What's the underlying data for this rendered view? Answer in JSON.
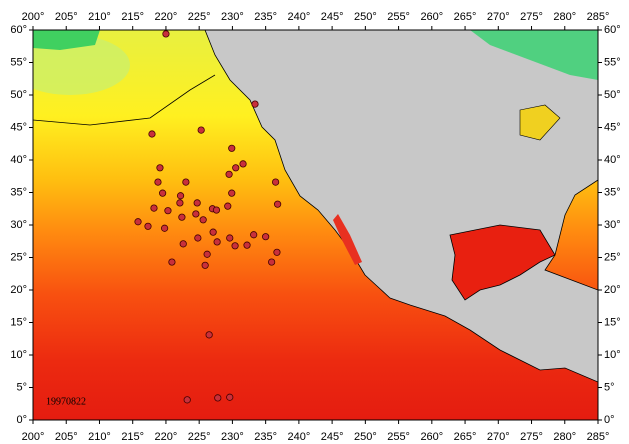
{
  "chart_data": {
    "type": "map",
    "annotation": "19970822",
    "xlim": [
      200,
      285
    ],
    "ylim": [
      0,
      60
    ],
    "xticks": [
      {
        "value": 200,
        "label": "200°"
      },
      {
        "value": 205,
        "label": "205°"
      },
      {
        "value": 210,
        "label": "210°"
      },
      {
        "value": 215,
        "label": "215°"
      },
      {
        "value": 220,
        "label": "220°"
      },
      {
        "value": 225,
        "label": "225°"
      },
      {
        "value": 230,
        "label": "230°"
      },
      {
        "value": 235,
        "label": "235°"
      },
      {
        "value": 240,
        "label": "240°"
      },
      {
        "value": 245,
        "label": "245°"
      },
      {
        "value": 250,
        "label": "250°"
      },
      {
        "value": 255,
        "label": "255°"
      },
      {
        "value": 260,
        "label": "260°"
      },
      {
        "value": 265,
        "label": "265°"
      },
      {
        "value": 270,
        "label": "270°"
      },
      {
        "value": 275,
        "label": "275°"
      },
      {
        "value": 280,
        "label": "280°"
      },
      {
        "value": 285,
        "label": "285°"
      }
    ],
    "yticks": [
      {
        "value": 0,
        "label": "0°"
      },
      {
        "value": 5,
        "label": "5°"
      },
      {
        "value": 10,
        "label": "10°"
      },
      {
        "value": 15,
        "label": "15°"
      },
      {
        "value": 20,
        "label": "20°"
      },
      {
        "value": 25,
        "label": "25°"
      },
      {
        "value": 30,
        "label": "30°"
      },
      {
        "value": 35,
        "label": "35°"
      },
      {
        "value": 40,
        "label": "40°"
      },
      {
        "value": 45,
        "label": "45°"
      },
      {
        "value": 50,
        "label": "50°"
      },
      {
        "value": 55,
        "label": "55°"
      },
      {
        "value": 60,
        "label": "60°"
      }
    ],
    "marker_color": "#c8303c",
    "x": [
      220.0,
      217.9,
      225.3,
      233.4,
      229.9,
      231.6,
      230.5,
      229.5,
      219.1,
      218.8,
      223.0,
      236.5,
      219.5,
      222.2,
      229.9,
      222.1,
      224.7,
      227.0,
      229.3,
      218.2,
      220.3,
      227.6,
      236.8,
      224.5,
      215.8,
      222.4,
      217.3,
      219.8,
      225.6,
      227.1,
      229.6,
      233.2,
      235.0,
      222.6,
      224.8,
      227.7,
      230.4,
      226.2,
      232.2,
      236.7,
      220.9,
      225.9,
      235.9,
      226.5,
      223.2,
      227.8,
      229.6
    ],
    "values": [
      59.4,
      44.0,
      44.6,
      48.6,
      41.8,
      39.4,
      38.8,
      37.8,
      38.8,
      36.6,
      36.6,
      36.6,
      34.9,
      34.5,
      34.9,
      33.4,
      33.4,
      32.5,
      32.9,
      32.6,
      32.2,
      32.3,
      33.2,
      31.7,
      30.5,
      31.2,
      29.8,
      29.5,
      30.8,
      28.9,
      28.0,
      28.5,
      28.2,
      27.1,
      28.0,
      27.4,
      26.8,
      25.5,
      26.9,
      25.8,
      24.3,
      23.8,
      24.3,
      13.1,
      3.1,
      3.4,
      3.5
    ]
  }
}
